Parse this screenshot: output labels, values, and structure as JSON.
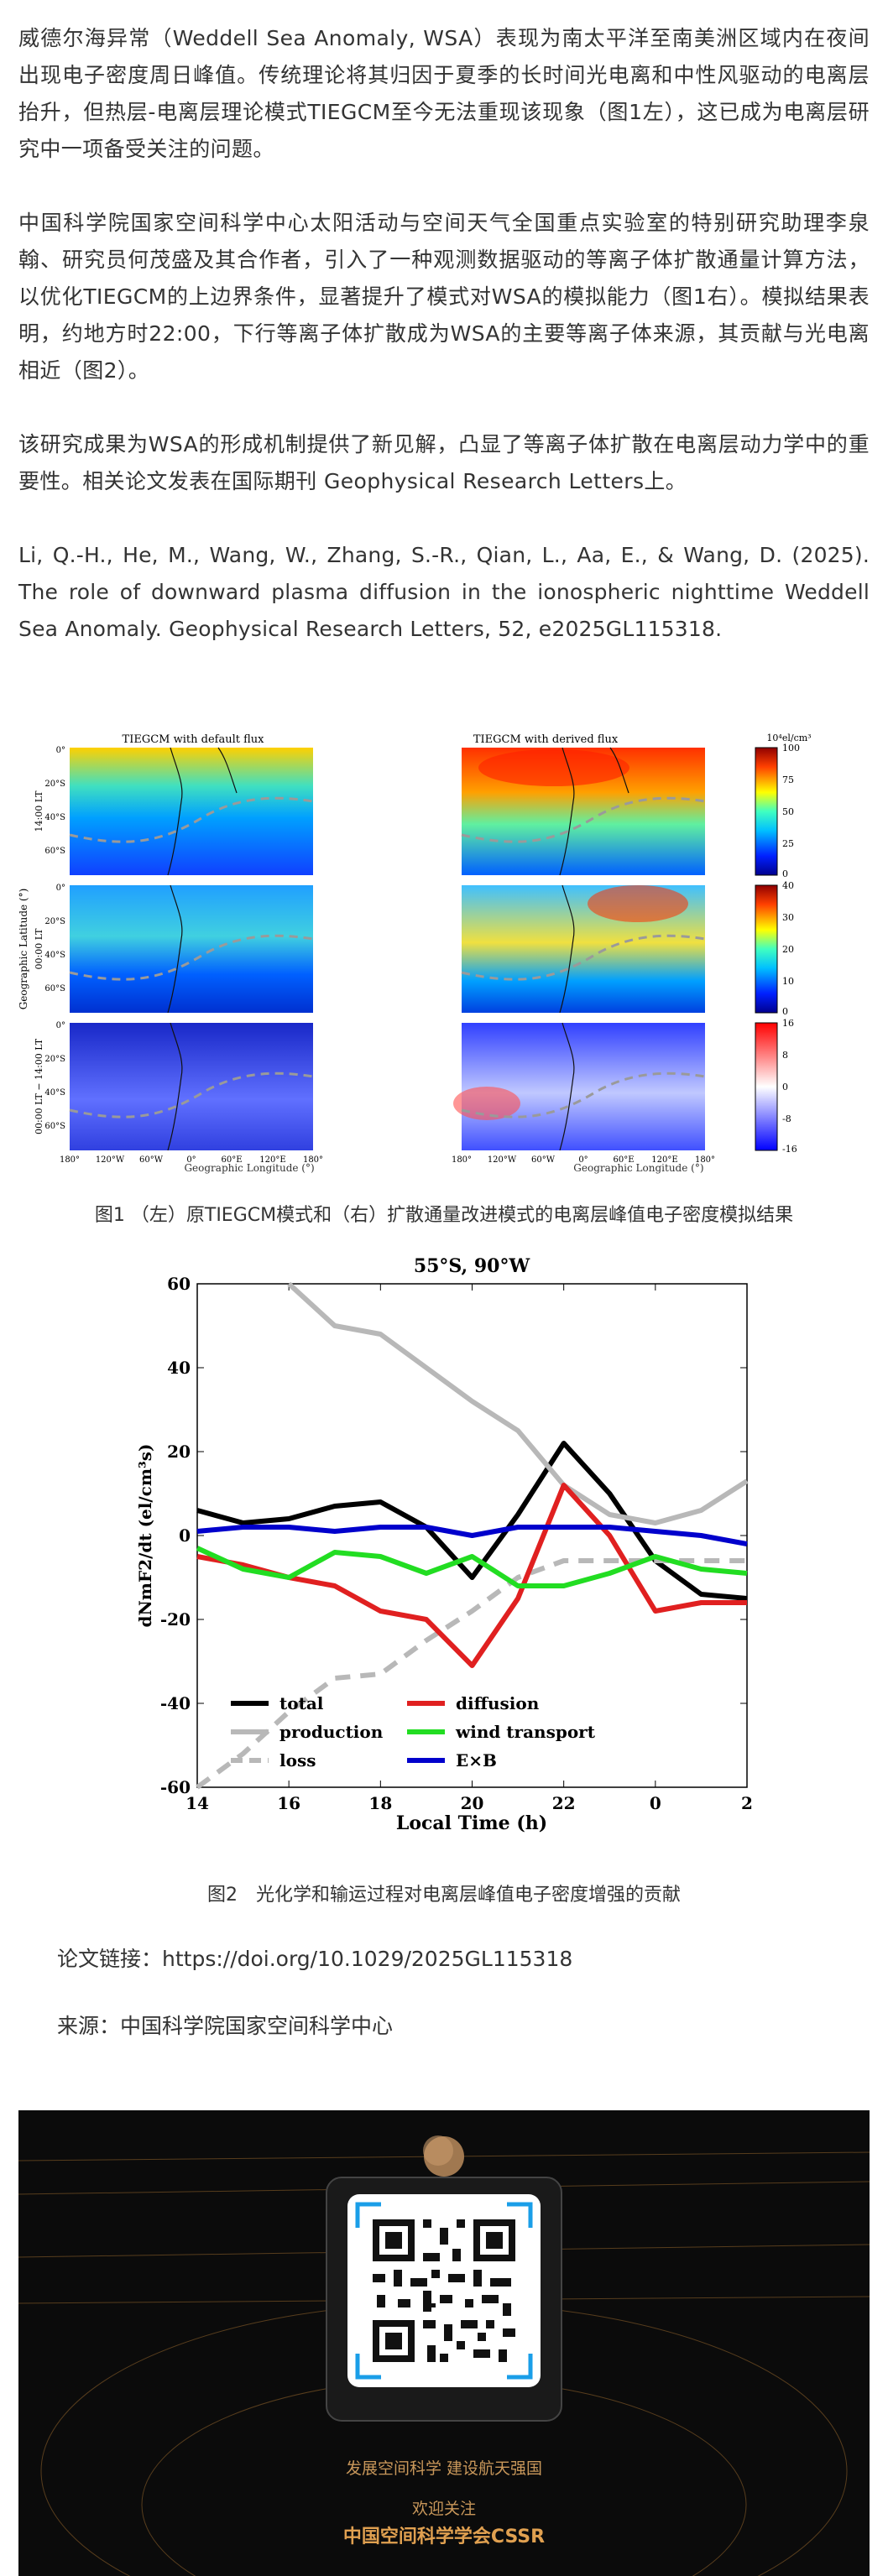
{
  "article": {
    "p1": "威德尔海异常（Weddell Sea Anomaly, WSA）表现为南太平洋至南美洲区域内在夜间出现电子密度周日峰值。传统理论将其归因于夏季的长时间光电离和中性风驱动的电离层抬升，但热层-电离层理论模式TIEGCM至今无法重现该现象（图1左），这已成为电离层研究中一项备受关注的问题。",
    "p2": "中国科学院国家空间科学中心太阳活动与空间天气全国重点实验室的特别研究助理李泉翰、研究员何茂盛及其合作者，引入了一种观测数据驱动的等离子体扩散通量计算方法，以优化TIEGCM的上边界条件，显著提升了模式对WSA的模拟能力（图1右）。模拟结果表明，约地方时22:00，下行等离子体扩散成为WSA的主要等离子体来源，其贡献与光电离相近（图2）。",
    "p3": "该研究成果为WSA的形成机制提供了新见解，凸显了等离子体扩散在电离层动力学中的重要性。相关论文发表在国际期刊 Geophysical Research Letters上。",
    "ref": "Li, Q.-H., He, M., Wang, W., Zhang, S.-R., Qian, L., Aa, E., & Wang, D. (2025). The role of downward plasma diffusion in the ionospheric nighttime Weddell Sea Anomaly. Geophysical Research Letters, 52, e2025GL115318.",
    "fig1_caption": "图1 （左）原TIEGCM模式和（右）扩散通量改进模式的电离层峰值电子密度模拟结果",
    "fig2_caption": "图2　光化学和输运过程对电离层峰值电子密度增强的贡献",
    "link": "论文链接：https://doi.org/10.1029/2025GL115318",
    "source": "来源：中国科学院国家空间科学中心"
  },
  "fig1": {
    "title_left": "TIEGCM with default flux",
    "title_right": "TIEGCM with derived flux",
    "unit": "10⁴el/cm³",
    "ylabel": "Geographic Latitude (°)",
    "xlabel": "Geographic Longitude (°)",
    "row_labels": [
      "14:00 LT",
      "00:00 LT",
      "00:00 LT − 14:00 LT"
    ],
    "lat_ticks": [
      "0°",
      "20°S",
      "40°S",
      "60°S"
    ],
    "lon_ticks": [
      "180°",
      "120°W",
      "60°W",
      "0°",
      "60°E",
      "120°E",
      "180°"
    ],
    "cbar1": [
      "100",
      "75",
      "50",
      "25",
      "0"
    ],
    "cbar2": [
      "40",
      "30",
      "20",
      "10",
      "0"
    ],
    "cbar3": [
      "16",
      "8",
      "0",
      "-8",
      "-16"
    ]
  },
  "chart_data": {
    "type": "line",
    "title": "55°S, 90°W",
    "xlabel": "Local Time (h)",
    "ylabel": "dNmF2/dt (el/cm³s)",
    "xtick_labels": [
      "14",
      "16",
      "18",
      "20",
      "22",
      "0",
      "2"
    ],
    "xlim": [
      14,
      26
    ],
    "ylim": [
      -60,
      60
    ],
    "yticks": [
      -60,
      -40,
      -20,
      0,
      20,
      40,
      60
    ],
    "x": [
      14,
      15,
      16,
      17,
      18,
      19,
      20,
      21,
      22,
      23,
      24,
      25,
      26
    ],
    "series": [
      {
        "name": "total",
        "color": "#000000",
        "dash": false,
        "values": [
          6,
          3,
          4,
          7,
          8,
          2,
          -10,
          5,
          22,
          10,
          -6,
          -14,
          -15
        ]
      },
      {
        "name": "production",
        "color": "#b8b8b8",
        "dash": false,
        "values": [
          null,
          null,
          60,
          50,
          48,
          40,
          32,
          25,
          12,
          5,
          3,
          6,
          13
        ]
      },
      {
        "name": "loss",
        "color": "#b8b8b8",
        "dash": true,
        "values": [
          -60,
          -52,
          -42,
          -34,
          -33,
          -25,
          -18,
          -10,
          -6,
          -6,
          -6,
          -6,
          -6
        ]
      },
      {
        "name": "diffusion",
        "color": "#e02020",
        "dash": false,
        "values": [
          -5,
          -7,
          -10,
          -12,
          -18,
          -20,
          -31,
          -15,
          12,
          0,
          -18,
          -16,
          -16
        ]
      },
      {
        "name": "wind transport",
        "color": "#22dd22",
        "dash": false,
        "values": [
          -3,
          -8,
          -10,
          -4,
          -5,
          -9,
          -5,
          -12,
          -12,
          -9,
          -5,
          -8,
          -9
        ]
      },
      {
        "name": "E×B",
        "color": "#0000cc",
        "dash": false,
        "values": [
          1,
          2,
          2,
          1,
          2,
          2,
          0,
          2,
          2,
          2,
          1,
          0,
          -2
        ]
      }
    ],
    "legend": "bottom"
  },
  "footer": {
    "slogan": "发展空间科学 建设航天强国",
    "follow": "欢迎关注",
    "org": "中国空间科学学会CSSR"
  }
}
